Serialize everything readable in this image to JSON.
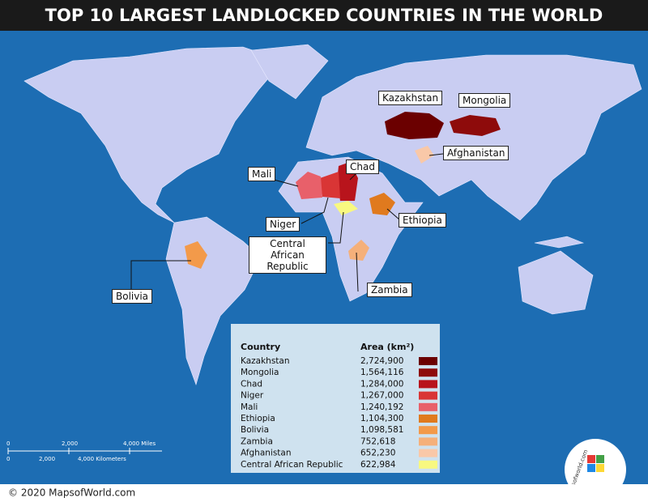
{
  "header": {
    "title": "TOP 10 LARGEST LANDLOCKED COUNTRIES IN THE WORLD"
  },
  "map_labels": [
    "Kazakhstan",
    "Mongolia",
    "Afghanistan",
    "Chad",
    "Mali",
    "Niger",
    "Ethiopia",
    "Central African Republic",
    "Bolivia",
    "Zambia"
  ],
  "legend": {
    "columns": [
      "Country",
      "Area (km²)"
    ],
    "rows": [
      {
        "country": "Kazakhstan",
        "area": "2,724,900",
        "color": "#6b0000"
      },
      {
        "country": "Mongolia",
        "area": "1,564,116",
        "color": "#8e0b0b"
      },
      {
        "country": "Chad",
        "area": "1,284,000",
        "color": "#b8141c"
      },
      {
        "country": "Niger",
        "area": "1,267,000",
        "color": "#d93535"
      },
      {
        "country": "Mali",
        "area": "1,240,192",
        "color": "#e8606a"
      },
      {
        "country": "Ethiopia",
        "area": "1,104,300",
        "color": "#e07a1e"
      },
      {
        "country": "Bolivia",
        "area": "1,098,581",
        "color": "#f39a4a"
      },
      {
        "country": "Zambia",
        "area": "752,618",
        "color": "#f5b07a"
      },
      {
        "country": "Afghanistan",
        "area": "652,230",
        "color": "#f9c8a8"
      },
      {
        "country": "Central African Republic",
        "area": "622,984",
        "color": "#f8f880"
      }
    ]
  },
  "scale": {
    "miles": [
      "0",
      "2,000",
      "4,000 Miles"
    ],
    "kilometers": [
      "0",
      "2,000",
      "4,000 Kilometers"
    ]
  },
  "logo": "mapsofworld.com",
  "footer": "© 2020 MapsofWorld.com"
}
